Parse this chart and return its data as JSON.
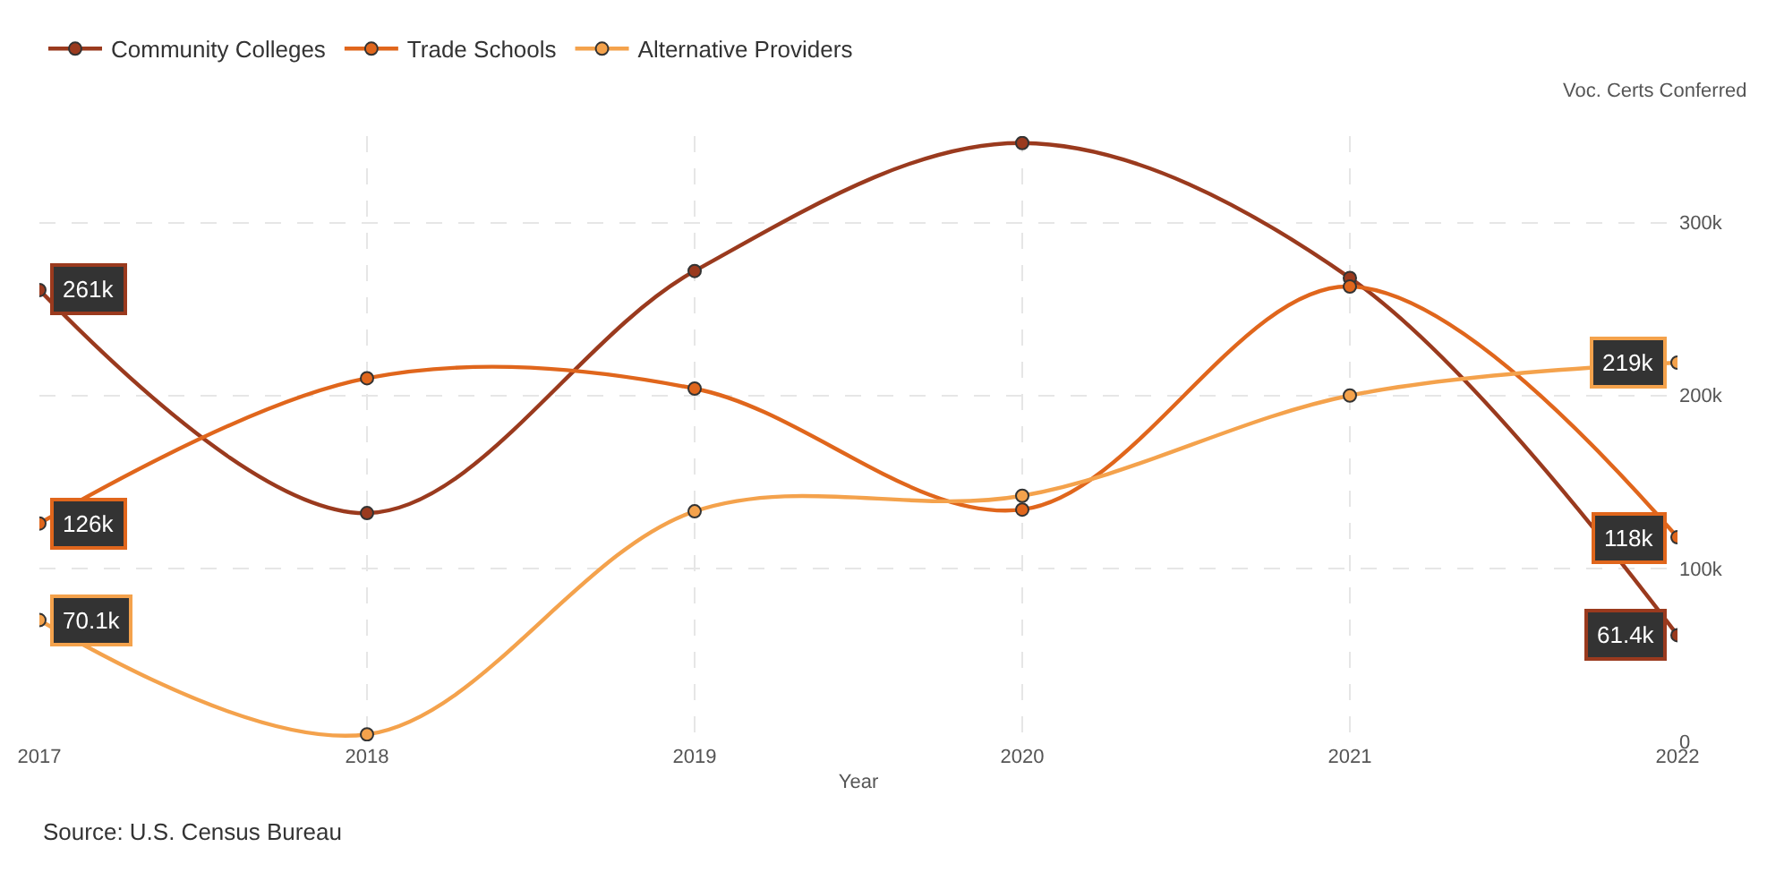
{
  "chart_data": {
    "type": "line",
    "xlabel": "Year",
    "ylabel": "Voc. Certs Conferred",
    "x": [
      2017,
      2018,
      2019,
      2020,
      2021,
      2022
    ],
    "xlim": [
      2017,
      2022
    ],
    "xticks": [
      2017,
      2018,
      2019,
      2020,
      2021,
      2022
    ],
    "ylim": [
      0,
      350000
    ],
    "yticks": [
      0,
      {
        "value": 100000,
        "label": "100k"
      },
      {
        "value": 200000,
        "label": "200k"
      },
      {
        "value": 300000,
        "label": "300k"
      }
    ],
    "series": [
      {
        "name": "Community Colleges",
        "color": "#9a3a1e",
        "values": [
          261000,
          132000,
          272000,
          346000,
          268000,
          61400
        ],
        "value_labels": [
          "261k",
          null,
          null,
          null,
          null,
          "61.4k"
        ]
      },
      {
        "name": "Trade Schools",
        "color": "#e0661c",
        "values": [
          126000,
          210000,
          204000,
          134000,
          263000,
          118000
        ],
        "value_labels": [
          "126k",
          null,
          null,
          null,
          null,
          "118k"
        ]
      },
      {
        "name": "Alternative Providers",
        "color": "#f4a24c",
        "values": [
          70100,
          4000,
          133000,
          142000,
          200000,
          219000
        ],
        "value_labels": [
          "70.1k",
          null,
          null,
          null,
          null,
          "219k"
        ]
      }
    ],
    "annotations": [
      "Source: U.S. Census Bureau"
    ],
    "grid": true,
    "legend": "top left",
    "marker": "circle",
    "line_style": "solid"
  }
}
